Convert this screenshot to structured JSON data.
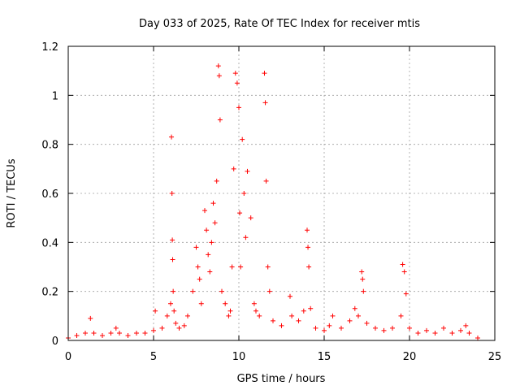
{
  "chart_data": {
    "type": "scatter",
    "title": "Day 033 of 2025, Rate Of TEC Index for receiver mtis",
    "xlabel": "GPS time / hours",
    "ylabel": "ROTI / TECUs",
    "xlim": [
      0,
      25
    ],
    "ylim": [
      0,
      1.2
    ],
    "xticks": [
      0,
      5,
      10,
      15,
      20,
      25
    ],
    "yticks": [
      0,
      0.2,
      0.4,
      0.6,
      0.8,
      1,
      1.2
    ],
    "xtick_labels": [
      "0",
      "5",
      "10",
      "15",
      "20",
      "25"
    ],
    "ytick_labels": [
      "0",
      "0.2",
      "0.4",
      "0.6",
      "0.8",
      "1",
      "1.2"
    ],
    "grid": true,
    "marker": "+",
    "series": [
      {
        "name": "ROTI",
        "color": "#ff0000",
        "x": [
          0.0,
          0.5,
          1.0,
          1.3,
          1.5,
          2.0,
          2.5,
          2.8,
          3.0,
          3.5,
          4.0,
          4.5,
          5.0,
          5.1,
          5.5,
          5.8,
          6.0,
          6.05,
          6.08,
          6.1,
          6.12,
          6.15,
          6.2,
          6.3,
          6.5,
          6.8,
          7.0,
          7.3,
          7.5,
          7.6,
          7.7,
          7.8,
          8.0,
          8.1,
          8.2,
          8.3,
          8.4,
          8.5,
          8.6,
          8.7,
          8.8,
          8.85,
          8.9,
          9.0,
          9.2,
          9.4,
          9.5,
          9.6,
          9.7,
          9.8,
          9.9,
          10.0,
          10.05,
          10.1,
          10.2,
          10.3,
          10.4,
          10.5,
          10.7,
          10.9,
          11.0,
          11.2,
          11.5,
          11.55,
          11.6,
          11.7,
          11.8,
          12.0,
          12.5,
          13.0,
          13.1,
          13.5,
          13.8,
          14.0,
          14.05,
          14.1,
          14.2,
          14.5,
          15.0,
          15.3,
          15.5,
          16.0,
          16.5,
          16.8,
          17.0,
          17.2,
          17.25,
          17.3,
          17.5,
          18.0,
          18.5,
          19.0,
          19.5,
          19.6,
          19.7,
          19.8,
          20.0,
          20.5,
          21.0,
          21.5,
          22.0,
          22.5,
          23.0,
          23.3,
          23.5,
          24.0
        ],
        "y": [
          0.01,
          0.02,
          0.03,
          0.09,
          0.03,
          0.02,
          0.03,
          0.05,
          0.03,
          0.02,
          0.03,
          0.03,
          0.04,
          0.12,
          0.05,
          0.1,
          0.15,
          0.83,
          0.6,
          0.41,
          0.33,
          0.2,
          0.12,
          0.07,
          0.05,
          0.06,
          0.1,
          0.2,
          0.38,
          0.3,
          0.25,
          0.15,
          0.53,
          0.45,
          0.35,
          0.28,
          0.4,
          0.56,
          0.48,
          0.65,
          1.12,
          1.08,
          0.9,
          0.2,
          0.15,
          0.1,
          0.12,
          0.3,
          0.7,
          1.09,
          1.05,
          0.95,
          0.52,
          0.3,
          0.82,
          0.6,
          0.42,
          0.69,
          0.5,
          0.15,
          0.12,
          0.1,
          1.09,
          0.97,
          0.65,
          0.3,
          0.2,
          0.08,
          0.06,
          0.18,
          0.1,
          0.08,
          0.12,
          0.45,
          0.38,
          0.3,
          0.13,
          0.05,
          0.04,
          0.06,
          0.1,
          0.05,
          0.08,
          0.13,
          0.1,
          0.28,
          0.25,
          0.2,
          0.07,
          0.05,
          0.04,
          0.05,
          0.1,
          0.31,
          0.28,
          0.19,
          0.05,
          0.03,
          0.04,
          0.03,
          0.05,
          0.03,
          0.04,
          0.06,
          0.03,
          0.01
        ]
      }
    ]
  }
}
